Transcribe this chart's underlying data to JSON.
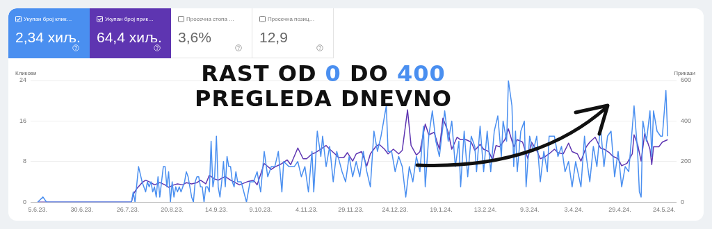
{
  "chart_data": [
    {
      "type": "other",
      "annotations": [
        "Укупан број клик…",
        "2,34 хиљ.",
        "Укупан број прик…",
        "64,4 хиљ.",
        "Просечна стопа …",
        "3,6%",
        "Просечна позиц…",
        "12,9"
      ]
    },
    {
      "type": "line",
      "title": "RAST OD 0 DO 400 PREGLEDA DNEVNO",
      "ylabel": "Кликови",
      "y2label": "Прикази",
      "xlim": [
        "2023-06-01",
        "2024-05-31"
      ],
      "xticks": [
        {
          "value": "2023-06-05",
          "label": "5.6.23."
        },
        {
          "value": "2023-06-30",
          "label": "30.6.23."
        },
        {
          "value": "2023-07-26",
          "label": "26.7.23."
        },
        {
          "value": "2023-08-20",
          "label": "20.8.23."
        },
        {
          "value": "2023-09-14",
          "label": "14.9.23."
        },
        {
          "value": "2023-10-09",
          "label": "9.10.23."
        },
        {
          "value": "2023-11-04",
          "label": "4.11.23."
        },
        {
          "value": "2023-11-29",
          "label": "29.11.23."
        },
        {
          "value": "2023-12-24",
          "label": "24.12.23."
        },
        {
          "value": "2024-01-19",
          "label": "19.1.24."
        },
        {
          "value": "2024-02-13",
          "label": "13.2.24."
        },
        {
          "value": "2024-03-09",
          "label": "9.3.24."
        },
        {
          "value": "2024-04-03",
          "label": "3.4.24."
        },
        {
          "value": "2024-04-29",
          "label": "29.4.24."
        },
        {
          "value": "2024-05-24",
          "label": "24.5.24."
        }
      ],
      "ylim": [
        0,
        24
      ],
      "yticks": [
        0,
        8,
        16,
        24
      ],
      "y2lim": [
        0,
        600
      ],
      "y2ticks": [
        0,
        200,
        400,
        600
      ],
      "grid": "y",
      "legend": false,
      "marker": "none",
      "line_style": "solid",
      "series": [
        {
          "color": "#4a8ff0",
          "x": [
            "2023-06-05",
            "2023-06-08",
            "2023-06-10",
            "2023-07-28",
            "2023-07-29",
            "2023-07-30",
            "2023-08-01",
            "2023-08-03",
            "2023-08-05",
            "2023-08-06",
            "2023-08-07",
            "2023-08-08",
            "2023-08-09",
            "2023-08-10",
            "2023-08-11",
            "2023-08-12",
            "2023-08-13",
            "2023-08-15",
            "2023-08-16",
            "2023-08-17",
            "2023-08-18",
            "2023-08-19",
            "2023-08-20",
            "2023-08-21",
            "2023-08-22",
            "2023-08-23",
            "2023-08-24",
            "2023-08-25",
            "2023-08-27",
            "2023-08-28",
            "2023-08-29",
            "2023-08-30",
            "2023-08-31",
            "2023-09-01",
            "2023-09-02",
            "2023-09-03",
            "2023-09-04",
            "2023-09-05",
            "2023-09-06",
            "2023-09-07",
            "2023-09-08",
            "2023-09-09",
            "2023-09-10",
            "2023-09-11",
            "2023-09-12",
            "2023-09-13",
            "2023-09-14",
            "2023-09-15",
            "2023-09-16",
            "2023-09-17",
            "2023-09-18",
            "2023-09-19",
            "2023-09-20",
            "2023-09-21",
            "2023-09-22",
            "2023-09-23",
            "2023-09-24",
            "2023-09-25",
            "2023-09-26",
            "2023-09-28",
            "2023-10-01",
            "2023-10-03",
            "2023-10-05",
            "2023-10-07",
            "2023-10-09",
            "2023-10-11",
            "2023-10-13",
            "2023-10-15",
            "2023-10-17",
            "2023-10-19",
            "2023-10-21",
            "2023-10-22",
            "2023-10-25",
            "2023-10-28",
            "2023-10-30",
            "2023-11-01",
            "2023-11-03",
            "2023-11-05",
            "2023-11-07",
            "2023-11-08",
            "2023-11-10",
            "2023-11-12",
            "2023-11-13",
            "2023-11-15",
            "2023-11-17",
            "2023-11-19",
            "2023-11-21",
            "2023-11-24",
            "2023-11-26",
            "2023-11-28",
            "2023-11-30",
            "2023-12-02",
            "2023-12-04",
            "2023-12-06",
            "2023-12-08",
            "2023-12-10",
            "2023-12-12",
            "2023-12-14",
            "2023-12-16",
            "2023-12-19",
            "2023-12-20",
            "2023-12-22",
            "2023-12-24",
            "2023-12-26",
            "2023-12-28",
            "2023-12-30",
            "2024-01-01",
            "2024-01-03",
            "2024-01-05",
            "2024-01-07",
            "2024-01-09",
            "2024-01-10",
            "2024-01-12",
            "2024-01-14",
            "2024-01-16",
            "2024-01-18",
            "2024-01-21",
            "2024-01-23",
            "2024-01-25",
            "2024-01-27",
            "2024-01-29",
            "2024-01-30",
            "2024-02-01",
            "2024-02-03",
            "2024-02-05",
            "2024-02-07",
            "2024-02-08",
            "2024-02-10",
            "2024-02-12",
            "2024-02-14",
            "2024-02-16",
            "2024-02-18",
            "2024-02-20",
            "2024-02-22",
            "2024-02-23",
            "2024-02-25",
            "2024-02-26",
            "2024-02-28",
            "2024-02-29",
            "2024-03-01",
            "2024-03-02",
            "2024-03-04",
            "2024-03-06",
            "2024-03-07",
            "2024-03-09",
            "2024-03-11",
            "2024-03-13",
            "2024-03-15",
            "2024-03-17",
            "2024-03-19",
            "2024-03-20",
            "2024-03-23",
            "2024-03-25",
            "2024-03-27",
            "2024-03-29",
            "2024-03-31",
            "2024-04-02",
            "2024-04-04",
            "2024-04-07",
            "2024-04-09",
            "2024-04-10",
            "2024-04-12",
            "2024-04-14",
            "2024-04-16",
            "2024-04-18",
            "2024-04-20",
            "2024-04-22",
            "2024-04-24",
            "2024-04-26",
            "2024-04-28",
            "2024-04-30",
            "2024-05-02",
            "2024-05-04",
            "2024-05-07",
            "2024-05-09",
            "2024-05-10",
            "2024-05-11",
            "2024-05-12",
            "2024-05-14",
            "2024-05-16",
            "2024-05-17",
            "2024-05-18",
            "2024-05-20",
            "2024-05-22",
            "2024-05-23",
            "2024-05-25",
            "2024-05-26"
          ],
          "values": [
            0,
            1,
            0,
            0,
            2,
            0,
            7,
            4,
            2,
            4,
            3,
            4,
            2,
            3,
            1,
            5,
            1,
            7,
            7,
            3,
            6,
            0,
            4,
            1,
            3,
            2,
            3,
            2,
            4,
            6,
            5,
            3,
            1,
            0,
            4,
            5,
            5,
            3,
            3,
            0,
            3,
            3,
            2,
            12,
            3,
            5,
            13,
            3,
            1,
            4,
            8,
            3,
            9,
            7,
            7,
            4,
            3,
            6,
            4,
            4,
            0,
            4,
            4,
            6,
            2,
            10,
            5,
            7,
            7,
            10,
            2,
            8,
            7,
            7,
            8,
            5,
            7,
            2,
            10,
            2,
            14,
            9,
            13,
            7,
            11,
            4,
            10,
            6,
            4,
            9,
            5,
            8,
            5,
            10,
            6,
            3,
            14,
            10,
            13,
            19,
            10,
            10,
            6,
            9,
            7,
            1,
            7,
            4,
            9,
            6,
            15,
            3,
            13,
            18,
            12,
            9,
            18,
            12,
            16,
            7,
            12,
            3,
            14,
            5,
            13,
            11,
            6,
            15,
            6,
            14,
            6,
            14,
            17,
            9,
            16,
            12,
            24,
            19,
            7,
            14,
            6,
            14,
            16,
            3,
            13,
            10,
            13,
            4,
            10,
            6,
            13,
            13,
            9,
            11,
            6,
            8,
            3,
            8,
            3,
            13,
            9,
            4,
            11,
            7,
            15,
            7,
            13,
            14,
            5,
            10,
            3,
            7,
            6,
            19,
            10,
            2,
            1,
            16,
            12,
            18,
            9,
            18,
            14,
            13,
            13,
            22,
            13
          ]
        },
        {
          "color": "#5e35b1",
          "axis": "y2",
          "x": [
            "2023-06-05",
            "2023-07-28",
            "2023-07-29",
            "2023-07-31",
            "2023-08-03",
            "2023-08-05",
            "2023-08-08",
            "2023-08-10",
            "2023-08-13",
            "2023-08-16",
            "2023-08-18",
            "2023-08-21",
            "2023-08-23",
            "2023-08-26",
            "2023-08-28",
            "2023-08-31",
            "2023-09-03",
            "2023-09-05",
            "2023-09-08",
            "2023-09-10",
            "2023-09-13",
            "2023-09-15",
            "2023-09-19",
            "2023-09-22",
            "2023-09-27",
            "2023-10-02",
            "2023-10-05",
            "2023-10-07",
            "2023-10-11",
            "2023-10-15",
            "2023-10-17",
            "2023-10-21",
            "2023-10-24",
            "2023-10-26",
            "2023-10-30",
            "2023-11-02",
            "2023-11-04",
            "2023-11-07",
            "2023-11-09",
            "2023-11-12",
            "2023-11-15",
            "2023-11-17",
            "2023-11-20",
            "2023-11-22",
            "2023-11-25",
            "2023-11-27",
            "2023-11-30",
            "2023-12-02",
            "2023-12-05",
            "2023-12-08",
            "2023-12-10",
            "2023-12-13",
            "2023-12-15",
            "2023-12-18",
            "2023-12-20",
            "2023-12-23",
            "2023-12-26",
            "2023-12-28",
            "2023-12-31",
            "2024-01-02",
            "2024-01-05",
            "2024-01-07",
            "2024-01-10",
            "2024-01-12",
            "2024-01-15",
            "2024-01-18",
            "2024-01-20",
            "2024-01-23",
            "2024-01-25",
            "2024-01-28",
            "2024-01-30",
            "2024-02-02",
            "2024-02-05",
            "2024-02-07",
            "2024-02-10",
            "2024-02-12",
            "2024-02-15",
            "2024-02-17",
            "2024-02-19",
            "2024-02-21",
            "2024-02-24",
            "2024-02-26",
            "2024-02-29",
            "2024-03-02",
            "2024-03-05",
            "2024-03-08",
            "2024-03-10",
            "2024-03-13",
            "2024-03-15",
            "2024-03-18",
            "2024-03-20",
            "2024-03-23",
            "2024-03-25",
            "2024-03-28",
            "2024-03-31",
            "2024-04-02",
            "2024-04-05",
            "2024-04-07",
            "2024-04-10",
            "2024-04-12",
            "2024-04-15",
            "2024-04-18",
            "2024-04-20",
            "2024-04-23",
            "2024-04-25",
            "2024-04-28",
            "2024-04-30",
            "2024-05-03",
            "2024-05-06",
            "2024-05-07",
            "2024-05-09",
            "2024-05-11",
            "2024-05-13",
            "2024-05-16",
            "2024-05-17",
            "2024-05-18",
            "2024-05-21",
            "2024-05-23",
            "2024-05-26"
          ],
          "values": [
            0,
            0,
            38,
            67,
            96,
            108,
            96,
            85,
            96,
            85,
            73,
            85,
            90,
            85,
            96,
            90,
            96,
            108,
            90,
            132,
            114,
            108,
            126,
            108,
            85,
            102,
            108,
            85,
            190,
            161,
            173,
            190,
            208,
            185,
            267,
            214,
            214,
            238,
            244,
            261,
            279,
            261,
            238,
            220,
            220,
            244,
            202,
            238,
            249,
            179,
            238,
            273,
            285,
            261,
            238,
            261,
            238,
            255,
            455,
            279,
            232,
            249,
            385,
            332,
            344,
            261,
            414,
            344,
            261,
            320,
            308,
            308,
            296,
            255,
            285,
            261,
            249,
            208,
            279,
            273,
            308,
            361,
            273,
            308,
            296,
            214,
            296,
            255,
            214,
            226,
            238,
            261,
            244,
            238,
            291,
            249,
            238,
            202,
            273,
            296,
            320,
            267,
            261,
            244,
            226,
            214,
            179,
            191,
            238,
            332,
            285,
            202,
            338,
            261,
            185,
            273,
            273,
            296,
            308
          ]
        }
      ]
    }
  ]
}
